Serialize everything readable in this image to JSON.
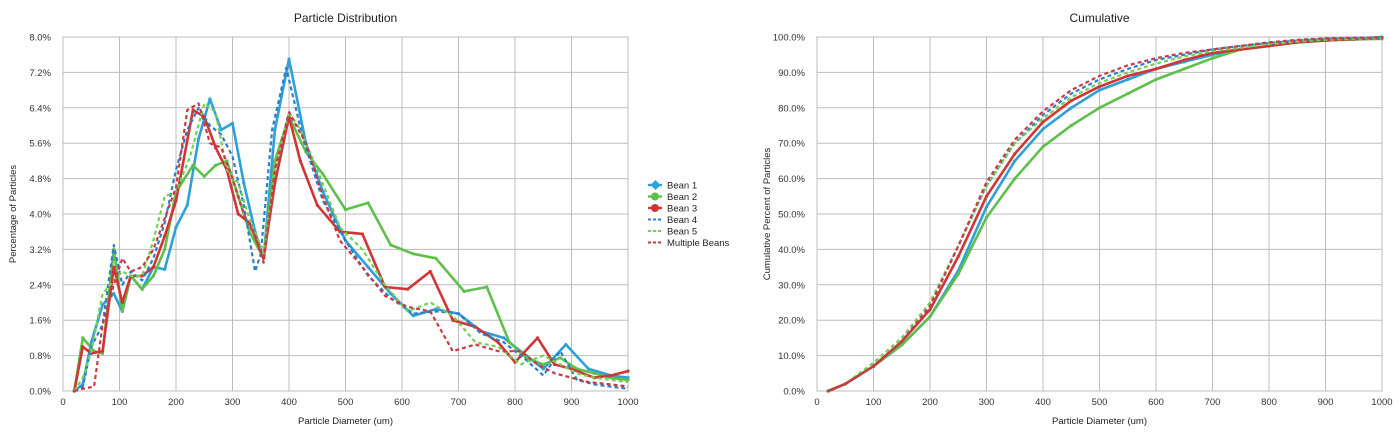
{
  "chart_data": [
    {
      "type": "line",
      "title": "Particle Distribution",
      "xlabel": "Particle Diameter (um)",
      "ylabel": "Percentage of Particles",
      "xlim": [
        0,
        1000
      ],
      "ylim": [
        0,
        8.0
      ],
      "xticks": [
        0,
        100,
        200,
        300,
        400,
        500,
        600,
        700,
        800,
        900,
        1000
      ],
      "yticks": [
        "0.0%",
        "0.8%",
        "1.6%",
        "2.4%",
        "3.2%",
        "4.0%",
        "4.8%",
        "5.6%",
        "6.4%",
        "7.2%",
        "8.0%"
      ],
      "grid": true,
      "legend": "right",
      "series": [
        {
          "name": "Bean 1",
          "color": "#2e9fd8",
          "style": "solid",
          "x": [
            20,
            35,
            50,
            70,
            90,
            105,
            120,
            140,
            160,
            180,
            200,
            220,
            240,
            260,
            280,
            300,
            320,
            340,
            355,
            375,
            400,
            430,
            460,
            500,
            540,
            580,
            620,
            660,
            700,
            740,
            780,
            820,
            850,
            890,
            930,
            970,
            1000
          ],
          "y": [
            0,
            0.15,
            1.1,
            1.95,
            2.2,
            1.8,
            2.6,
            2.3,
            2.8,
            2.75,
            3.7,
            4.2,
            5.7,
            6.6,
            5.9,
            6.05,
            4.7,
            3.6,
            3.0,
            5.9,
            7.5,
            5.6,
            4.5,
            3.4,
            2.8,
            2.2,
            1.7,
            1.85,
            1.75,
            1.35,
            1.2,
            0.8,
            0.5,
            1.05,
            0.5,
            0.35,
            0.3
          ]
        },
        {
          "name": "Bean 2",
          "color": "#5ec04b",
          "style": "solid",
          "x": [
            20,
            35,
            55,
            70,
            90,
            105,
            120,
            140,
            160,
            180,
            200,
            230,
            250,
            270,
            290,
            310,
            330,
            355,
            375,
            400,
            430,
            460,
            500,
            540,
            580,
            620,
            660,
            710,
            750,
            790,
            820,
            850,
            880,
            910,
            940,
            970,
            1000
          ],
          "y": [
            0,
            1.2,
            0.9,
            0.85,
            3.2,
            1.8,
            2.6,
            2.3,
            2.6,
            3.2,
            4.5,
            5.1,
            4.85,
            5.1,
            5.2,
            4.4,
            3.6,
            3.0,
            5.2,
            6.2,
            5.4,
            4.9,
            4.1,
            4.25,
            3.3,
            3.1,
            3.0,
            2.25,
            2.35,
            1.1,
            0.75,
            0.6,
            0.75,
            0.5,
            0.4,
            0.3,
            0.25
          ]
        },
        {
          "name": "Bean 3",
          "color": "#d03535",
          "style": "solid",
          "x": [
            20,
            35,
            50,
            70,
            90,
            105,
            120,
            140,
            160,
            180,
            200,
            230,
            250,
            270,
            290,
            310,
            330,
            355,
            375,
            400,
            420,
            450,
            490,
            530,
            570,
            610,
            650,
            690,
            730,
            770,
            800,
            840,
            870,
            900,
            940,
            970,
            1000
          ],
          "y": [
            0,
            1.0,
            0.85,
            0.9,
            2.8,
            2.0,
            2.6,
            2.6,
            2.8,
            3.5,
            4.3,
            6.35,
            6.2,
            5.5,
            5.0,
            4.0,
            3.8,
            3.0,
            4.7,
            6.2,
            5.2,
            4.2,
            3.6,
            3.55,
            2.35,
            2.3,
            2.7,
            1.6,
            1.45,
            1.1,
            0.65,
            1.2,
            0.6,
            0.5,
            0.3,
            0.35,
            0.45
          ]
        },
        {
          "name": "Bean 4",
          "color": "#2b7fc7",
          "style": "dashed",
          "x": [
            20,
            35,
            50,
            70,
            90,
            105,
            120,
            140,
            160,
            180,
            200,
            220,
            240,
            260,
            280,
            300,
            320,
            340,
            350,
            370,
            395,
            425,
            460,
            500,
            540,
            580,
            620,
            660,
            700,
            740,
            780,
            820,
            850,
            880,
            910,
            940,
            970,
            1000
          ],
          "y": [
            0,
            0.1,
            1.0,
            1.5,
            3.3,
            2.4,
            2.7,
            2.5,
            3.0,
            3.8,
            5.0,
            5.9,
            6.4,
            6.0,
            5.8,
            5.3,
            4.2,
            2.7,
            3.1,
            5.9,
            7.3,
            5.7,
            4.3,
            3.4,
            2.6,
            2.1,
            1.75,
            1.8,
            1.75,
            1.3,
            1.1,
            0.7,
            0.35,
            0.9,
            0.25,
            0.15,
            0.1,
            0.05
          ]
        },
        {
          "name": "Bean 5",
          "color": "#74cf55",
          "style": "dashed",
          "x": [
            20,
            35,
            50,
            70,
            90,
            105,
            120,
            140,
            160,
            180,
            200,
            225,
            250,
            270,
            290,
            310,
            330,
            355,
            375,
            400,
            420,
            450,
            490,
            530,
            570,
            610,
            650,
            690,
            730,
            770,
            810,
            850,
            880,
            910,
            940,
            970,
            1000
          ],
          "y": [
            0,
            0.3,
            0.9,
            2.2,
            2.5,
            2.7,
            2.6,
            2.6,
            3.4,
            4.4,
            4.5,
            5.3,
            6.5,
            6.3,
            5.0,
            4.7,
            3.9,
            3.1,
            5.0,
            6.3,
            5.9,
            5.0,
            3.7,
            3.2,
            2.4,
            1.8,
            2.0,
            1.7,
            1.1,
            1.0,
            0.6,
            0.8,
            0.6,
            0.4,
            0.3,
            0.25,
            0.2
          ]
        },
        {
          "name": "Multiple Beans",
          "color": "#c73b45",
          "style": "dashed",
          "x": [
            20,
            35,
            55,
            70,
            90,
            105,
            120,
            140,
            160,
            180,
            200,
            220,
            240,
            260,
            280,
            300,
            320,
            340,
            355,
            375,
            400,
            430,
            460,
            490,
            530,
            570,
            610,
            650,
            690,
            730,
            770,
            810,
            840,
            870,
            900,
            930,
            970,
            1000
          ],
          "y": [
            0,
            0.05,
            0.1,
            1.5,
            2.4,
            3.0,
            2.7,
            2.8,
            3.2,
            3.9,
            4.6,
            6.35,
            6.5,
            5.6,
            5.5,
            4.8,
            4.0,
            3.5,
            2.9,
            5.0,
            6.3,
            5.6,
            4.4,
            3.4,
            2.8,
            2.15,
            1.9,
            1.8,
            0.9,
            1.05,
            0.9,
            0.9,
            0.6,
            0.4,
            0.3,
            0.2,
            0.15,
            0.1
          ]
        }
      ]
    },
    {
      "type": "line",
      "title": "Cumulative",
      "xlabel": "Particle Diameter (um)",
      "ylabel": "Cumulative Percent of Particles",
      "xlim": [
        0,
        1000
      ],
      "ylim": [
        0,
        100
      ],
      "xticks": [
        0,
        100,
        200,
        300,
        400,
        500,
        600,
        700,
        800,
        900,
        1000
      ],
      "yticks": [
        "0.0%",
        "10.0%",
        "20.0%",
        "30.0%",
        "40.0%",
        "50.0%",
        "60.0%",
        "70.0%",
        "80.0%",
        "90.0%",
        "100.0%"
      ],
      "grid": true,
      "series": [
        {
          "name": "Bean 1",
          "color": "#2e9fd8",
          "style": "solid",
          "x": [
            20,
            50,
            100,
            150,
            200,
            250,
            300,
            350,
            400,
            450,
            500,
            550,
            600,
            650,
            700,
            750,
            800,
            850,
            900,
            950,
            1000
          ],
          "y": [
            0,
            2,
            7,
            13,
            21,
            34,
            52,
            65,
            74,
            80,
            85,
            88,
            91,
            93,
            95,
            96.5,
            97.5,
            98.5,
            99,
            99.5,
            100
          ]
        },
        {
          "name": "Bean 2",
          "color": "#5ec04b",
          "style": "solid",
          "x": [
            20,
            50,
            100,
            150,
            200,
            250,
            300,
            350,
            400,
            450,
            500,
            550,
            600,
            650,
            700,
            750,
            800,
            850,
            900,
            950,
            1000
          ],
          "y": [
            0,
            2,
            7,
            13,
            21,
            33,
            49,
            60,
            69,
            75,
            80,
            84,
            88,
            91,
            94,
            96.5,
            97.5,
            98.5,
            99,
            99.3,
            99.5
          ]
        },
        {
          "name": "Bean 3",
          "color": "#d03535",
          "style": "solid",
          "x": [
            20,
            50,
            100,
            150,
            200,
            250,
            300,
            350,
            400,
            450,
            500,
            550,
            600,
            650,
            700,
            750,
            800,
            850,
            900,
            950,
            1000
          ],
          "y": [
            0,
            2,
            7,
            14,
            23,
            38,
            55,
            67,
            76,
            82,
            86,
            89,
            91,
            93.5,
            95.5,
            96.5,
            97.5,
            98.5,
            99,
            99.4,
            99.7
          ]
        },
        {
          "name": "Bean 4",
          "color": "#2b7fc7",
          "style": "dashed",
          "x": [
            20,
            50,
            100,
            150,
            200,
            250,
            300,
            350,
            400,
            450,
            500,
            550,
            600,
            650,
            700,
            750,
            800,
            850,
            900,
            950,
            1000
          ],
          "y": [
            0,
            2,
            7,
            14,
            24,
            41,
            58,
            70,
            78,
            84,
            88,
            91,
            93.5,
            95,
            96.5,
            97.5,
            98.3,
            99,
            99.5,
            99.7,
            99.8
          ]
        },
        {
          "name": "Bean 5",
          "color": "#74cf55",
          "style": "dashed",
          "x": [
            20,
            50,
            100,
            150,
            200,
            250,
            300,
            350,
            400,
            450,
            500,
            550,
            600,
            650,
            700,
            750,
            800,
            850,
            900,
            950,
            1000
          ],
          "y": [
            0,
            2,
            8,
            15,
            25,
            41,
            58,
            70,
            77,
            83,
            87,
            90,
            92.5,
            94.5,
            96,
            97,
            98,
            98.7,
            99.2,
            99.5,
            99.7
          ]
        },
        {
          "name": "Multiple Beans",
          "color": "#c73b45",
          "style": "dashed",
          "x": [
            20,
            50,
            100,
            150,
            200,
            250,
            300,
            350,
            400,
            450,
            500,
            550,
            600,
            650,
            700,
            750,
            800,
            850,
            900,
            950,
            1000
          ],
          "y": [
            0,
            2,
            7,
            14,
            24,
            41,
            59,
            71,
            79,
            85,
            89,
            92,
            94,
            95.5,
            96.5,
            97.5,
            98.5,
            99.2,
            99.6,
            99.8,
            99.9
          ]
        }
      ]
    }
  ]
}
